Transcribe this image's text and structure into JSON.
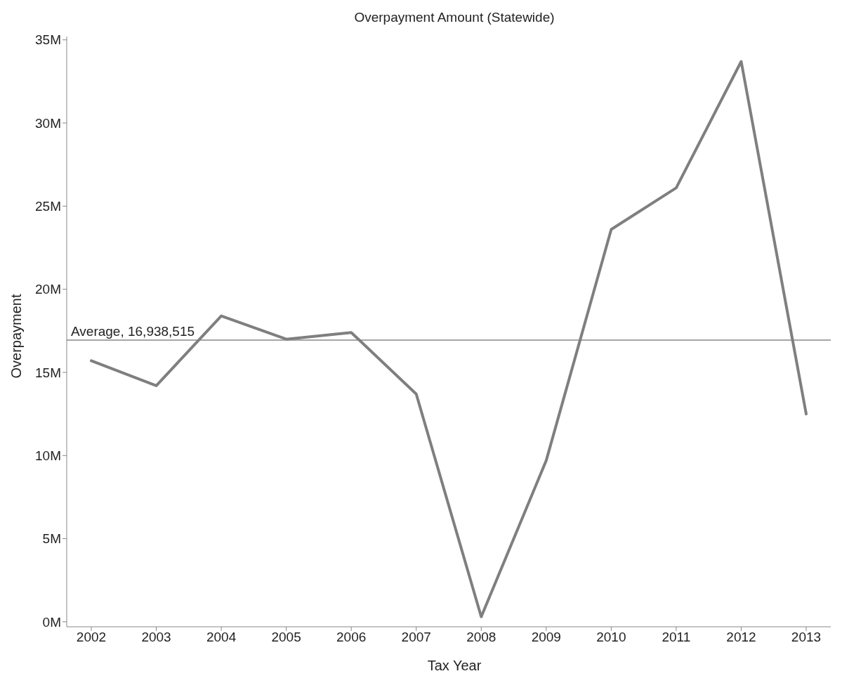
{
  "chart_data": {
    "type": "line",
    "title": "Overpayment Amount (Statewide)",
    "xlabel": "Tax Year",
    "ylabel": "Overpayment",
    "categories": [
      "2002",
      "2003",
      "2004",
      "2005",
      "2006",
      "2007",
      "2008",
      "2009",
      "2010",
      "2011",
      "2012",
      "2013"
    ],
    "series": [
      {
        "color": "#7f7f7f",
        "values": [
          15700000,
          14200000,
          18400000,
          17000000,
          17400000,
          13700000,
          300000,
          9700000,
          23600000,
          26100000,
          33700000,
          12500000
        ]
      }
    ],
    "ylim": [
      -300000,
      35200000
    ],
    "yticks": [
      {
        "value": 0,
        "label": "0M"
      },
      {
        "value": 5000000,
        "label": "5M"
      },
      {
        "value": 10000000,
        "label": "10M"
      },
      {
        "value": 15000000,
        "label": "15M"
      },
      {
        "value": 20000000,
        "label": "20M"
      },
      {
        "value": 25000000,
        "label": "25M"
      },
      {
        "value": 30000000,
        "label": "30M"
      },
      {
        "value": 35000000,
        "label": "35M"
      }
    ],
    "ref_lines": [
      {
        "axis": "y",
        "value": 16938515,
        "label": "Average, 16,938,515",
        "color": "#a6a6a6"
      }
    ],
    "grid": false,
    "legend": false,
    "marker": "none",
    "line_style": "solid"
  }
}
